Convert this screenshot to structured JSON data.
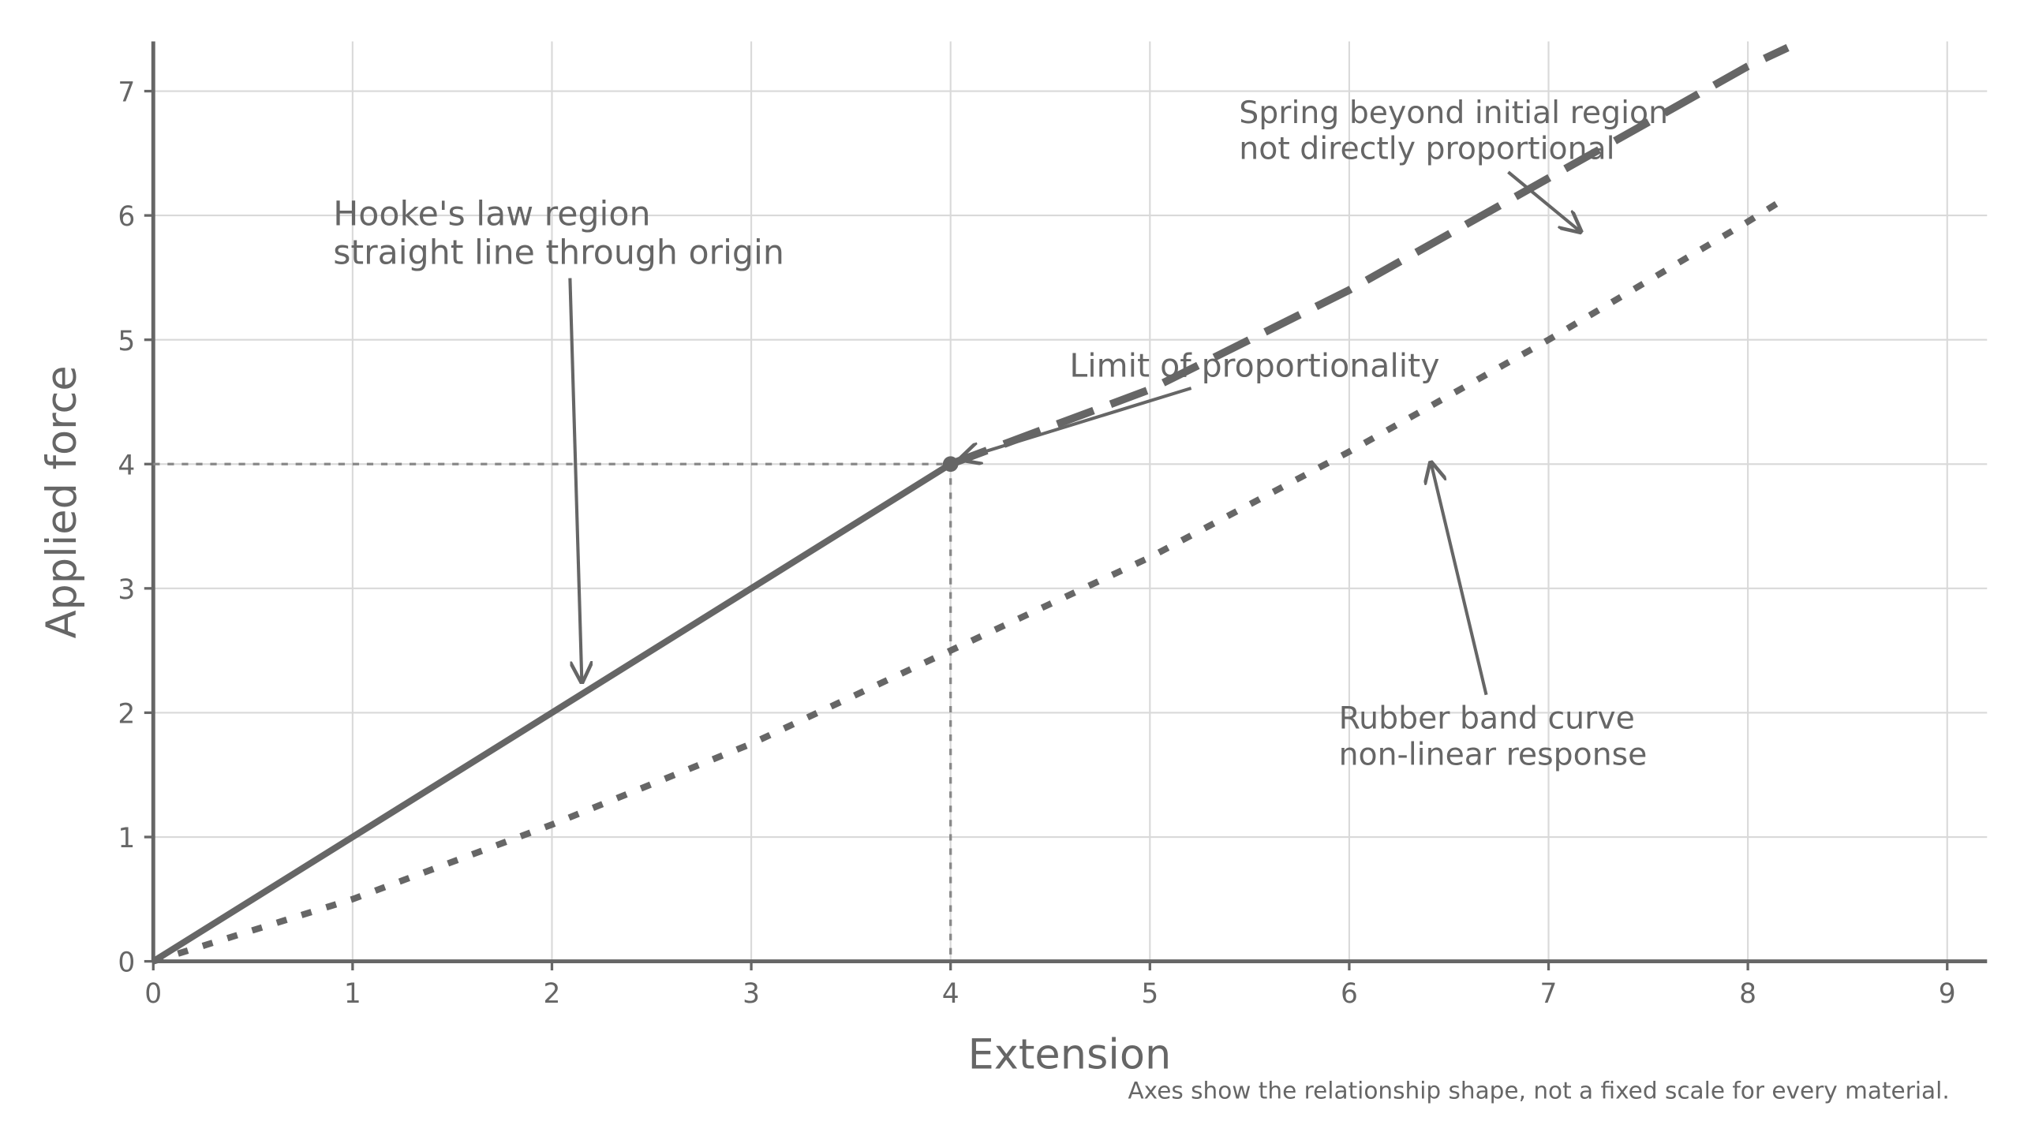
{
  "chart_data": {
    "type": "line",
    "xlabel": "Extension",
    "ylabel": "Applied force",
    "caption": "Axes show the relationship shape, not a fixed scale for every material.",
    "xlim": [
      0,
      9.2
    ],
    "ylim": [
      0,
      7.4
    ],
    "xticks": [
      0,
      1,
      2,
      3,
      4,
      5,
      6,
      7,
      8,
      9
    ],
    "yticks": [
      0,
      1,
      2,
      3,
      4,
      5,
      6,
      7
    ],
    "grid": true,
    "series": [
      {
        "color": "#666666",
        "style": "solid",
        "x": [
          0,
          4
        ],
        "values": [
          0,
          4
        ]
      },
      {
        "color": "#666666",
        "style": "dashed",
        "x": [
          4,
          5,
          6,
          7,
          8,
          8.2
        ],
        "values": [
          4,
          4.6,
          5.4,
          6.3,
          7.2,
          7.35
        ]
      },
      {
        "color": "#666666",
        "style": "dotted",
        "x": [
          0,
          1,
          2,
          3,
          4,
          5,
          6,
          7,
          8,
          8.2
        ],
        "values": [
          0,
          0.5,
          1.1,
          1.75,
          2.5,
          3.25,
          4.1,
          5.0,
          5.95,
          6.15
        ]
      }
    ],
    "marker": {
      "x": 4,
      "y": 4
    },
    "annotations": [
      {
        "lines": [
          "Hooke's law region",
          "straight line through origin"
        ],
        "xy": [
          2.15,
          2.25
        ]
      },
      {
        "lines": [
          "Limit of proportionality"
        ],
        "xy": [
          4.05,
          4.04
        ]
      },
      {
        "lines": [
          "Spring beyond initial region",
          "not directly proportional"
        ],
        "xy": [
          7.16,
          5.87
        ]
      },
      {
        "lines": [
          "Rubber band curve",
          "non-linear response"
        ],
        "xy": [
          6.41,
          4.01
        ]
      }
    ]
  }
}
